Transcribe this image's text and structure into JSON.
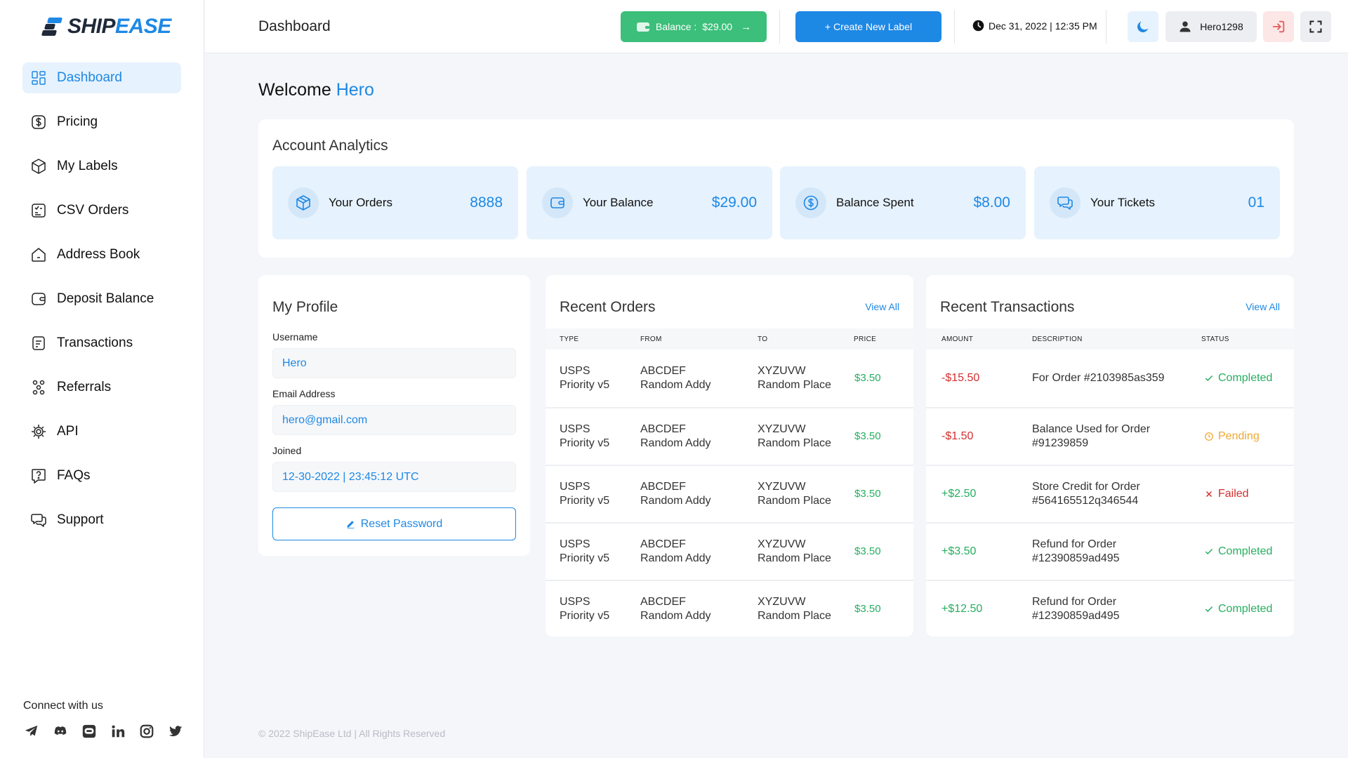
{
  "brand": {
    "part1": "SHIP",
    "part2": "EASE"
  },
  "sidebar": {
    "items": [
      {
        "label": "Dashboard",
        "icon": "dashboard-icon",
        "active": true
      },
      {
        "label": "Pricing",
        "icon": "dollar-icon"
      },
      {
        "label": "My Labels",
        "icon": "box-icon"
      },
      {
        "label": "CSV Orders",
        "icon": "csv-file-icon"
      },
      {
        "label": "Address Book",
        "icon": "home-icon"
      },
      {
        "label": "Deposit Balance",
        "icon": "wallet-icon"
      },
      {
        "label": "Transactions",
        "icon": "receipt-icon"
      },
      {
        "label": "Referrals",
        "icon": "referral-icon"
      },
      {
        "label": "API",
        "icon": "chip-icon"
      },
      {
        "label": "FAQs",
        "icon": "question-icon"
      },
      {
        "label": "Support",
        "icon": "chat-icon"
      }
    ],
    "connect_label": "Connect with us",
    "socials": [
      "telegram-icon",
      "discord-icon",
      "zalo-icon",
      "linkedin-icon",
      "instagram-icon",
      "twitter-icon"
    ]
  },
  "header": {
    "title": "Dashboard",
    "balance_label": "Balance :",
    "balance_value": "$29.00",
    "create_label": "+ Create New Label",
    "datetime": "Dec 31, 2022 | 12:35 PM",
    "username": "Hero1298"
  },
  "welcome": {
    "prefix": "Welcome",
    "name": "Hero"
  },
  "analytics": {
    "title": "Account Analytics",
    "stats": [
      {
        "label": "Your Orders",
        "value": "8888",
        "icon": "box-icon"
      },
      {
        "label": "Your Balance",
        "value": "$29.00",
        "icon": "wallet-icon"
      },
      {
        "label": "Balance Spent",
        "value": "$8.00",
        "icon": "dollar-icon"
      },
      {
        "label": "Your Tickets",
        "value": "01",
        "icon": "chat-icon"
      }
    ]
  },
  "profile": {
    "title": "My Profile",
    "username_label": "Username",
    "username": "Hero",
    "email_label": "Email Address",
    "email": "hero@gmail.com",
    "joined_label": "Joined",
    "joined": "12-30-2022 | 23:45:12 UTC",
    "reset_label": "Reset Password"
  },
  "orders": {
    "title": "Recent Orders",
    "view_all": "View All",
    "columns": [
      "TYPE",
      "FROM",
      "TO",
      "PRICE"
    ],
    "rows": [
      {
        "type1": "USPS",
        "type2": "Priority v5",
        "from1": "ABCDEF",
        "from2": "Random Addy",
        "to1": "XYZUVW",
        "to2": "Random Place",
        "price": "$3.50"
      },
      {
        "type1": "USPS",
        "type2": "Priority v5",
        "from1": "ABCDEF",
        "from2": "Random Addy",
        "to1": "XYZUVW",
        "to2": "Random Place",
        "price": "$3.50"
      },
      {
        "type1": "USPS",
        "type2": "Priority v5",
        "from1": "ABCDEF",
        "from2": "Random Addy",
        "to1": "XYZUVW",
        "to2": "Random Place",
        "price": "$3.50"
      },
      {
        "type1": "USPS",
        "type2": "Priority v5",
        "from1": "ABCDEF",
        "from2": "Random Addy",
        "to1": "XYZUVW",
        "to2": "Random Place",
        "price": "$3.50"
      },
      {
        "type1": "USPS",
        "type2": "Priority v5",
        "from1": "ABCDEF",
        "from2": "Random Addy",
        "to1": "XYZUVW",
        "to2": "Random Place",
        "price": "$3.50"
      }
    ]
  },
  "transactions": {
    "title": "Recent Transactions",
    "view_all": "View All",
    "columns": [
      "AMOUNT",
      "DESCRIPTION",
      "STATUS"
    ],
    "rows": [
      {
        "amount": "-$15.50",
        "desc1": "For Order #2103985as359",
        "desc2": "",
        "status": "Completed",
        "kind": "completed",
        "sign": "neg"
      },
      {
        "amount": "-$1.50",
        "desc1": "Balance Used for Order",
        "desc2": "#91239859",
        "status": "Pending",
        "kind": "pending",
        "sign": "neg"
      },
      {
        "amount": "+$2.50",
        "desc1": "Store Credit for Order",
        "desc2": "#564165512q346544",
        "status": "Failed",
        "kind": "failed",
        "sign": "pos"
      },
      {
        "amount": "+$3.50",
        "desc1": "Refund for Order",
        "desc2": "#12390859ad495",
        "status": "Completed",
        "kind": "completed",
        "sign": "pos"
      },
      {
        "amount": "+$12.50",
        "desc1": "Refund for Order",
        "desc2": "#12390859ad495",
        "status": "Completed",
        "kind": "completed",
        "sign": "pos"
      }
    ]
  },
  "footer": {
    "text": "© 2022 ShipEase Ltd | All Rights Reserved"
  },
  "colors": {
    "accent": "#1e88e5",
    "success": "#27ae60",
    "danger": "#d32f2f",
    "warning": "#f0a830",
    "balance_button": "#3bbf7a"
  }
}
